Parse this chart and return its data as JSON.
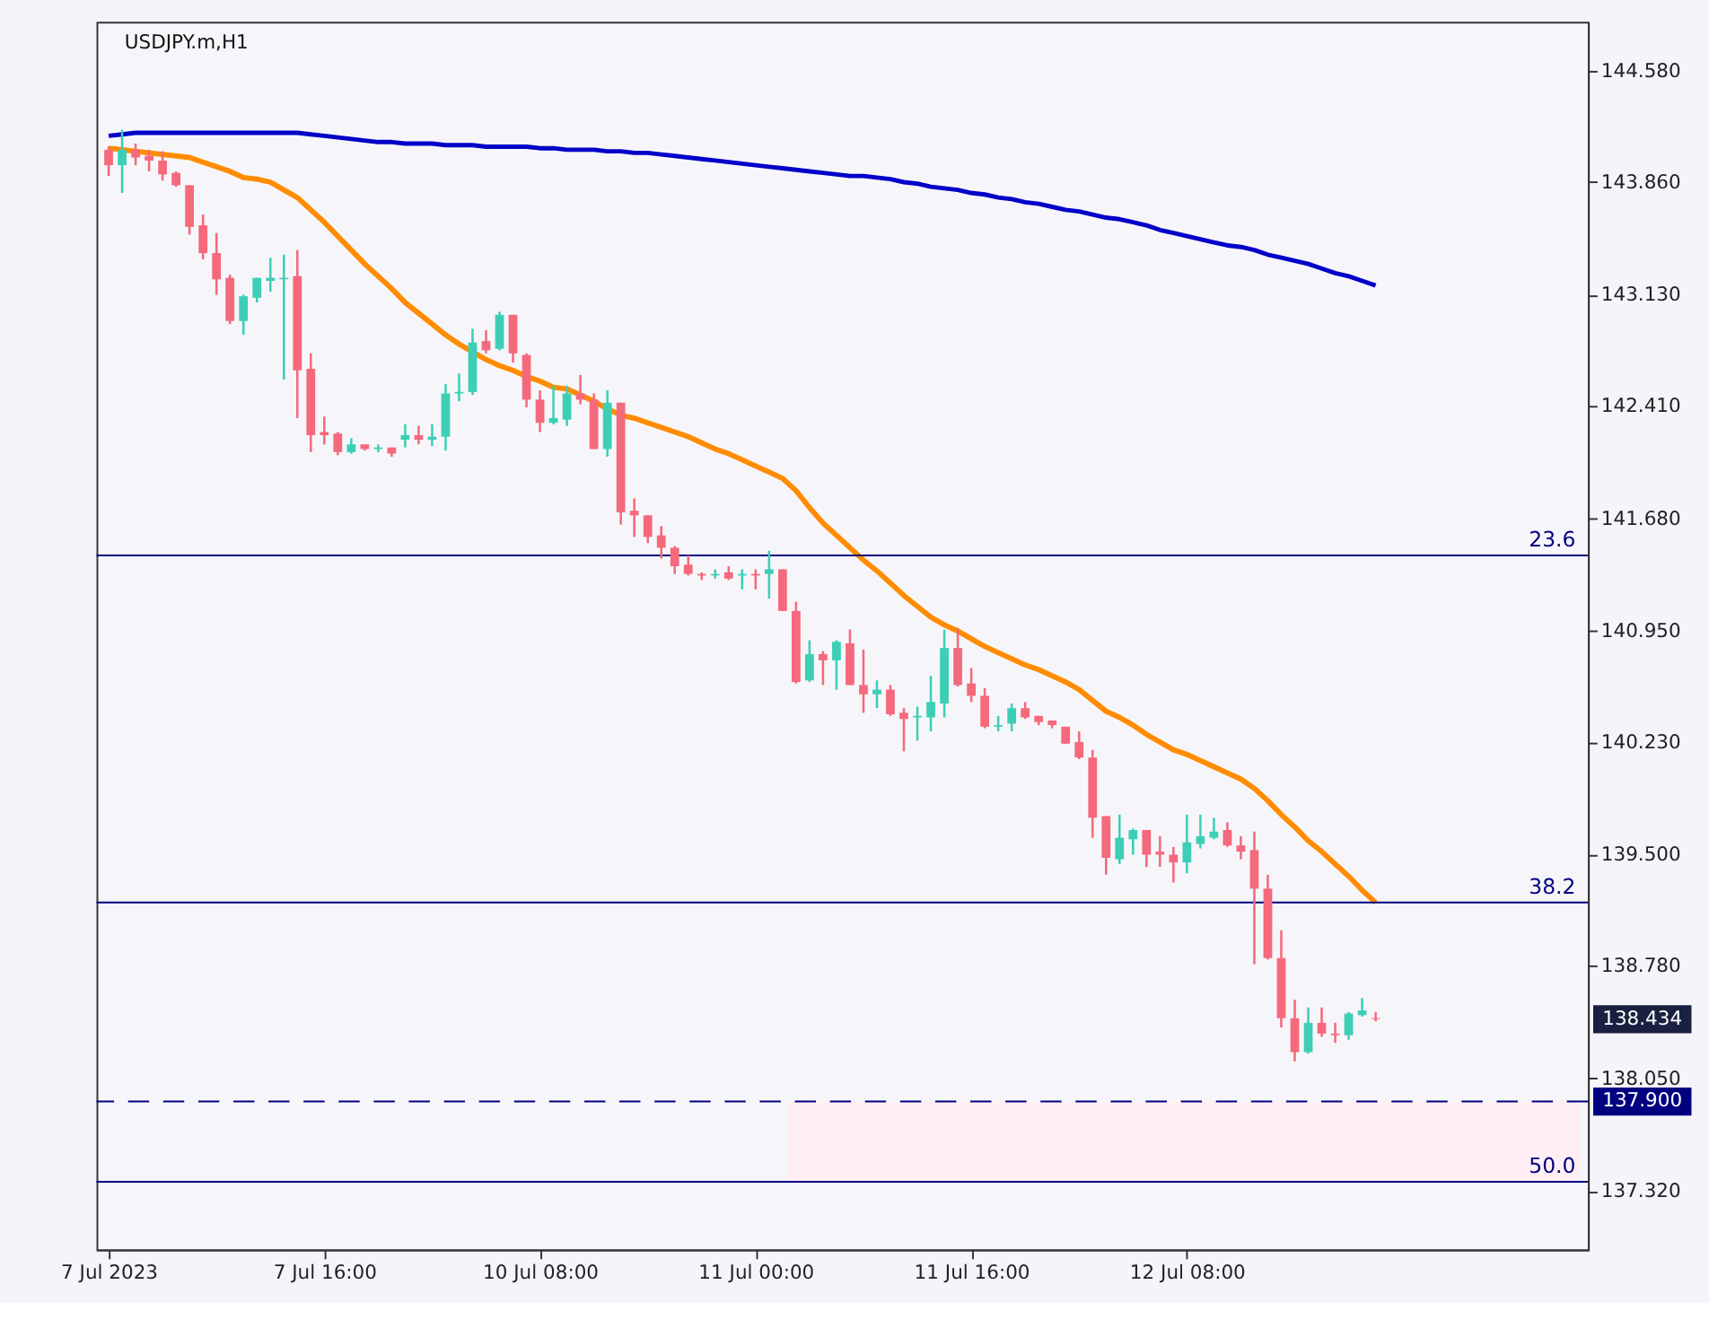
{
  "chart_data": {
    "type": "candlestick",
    "title": "USDJPY.m,H1",
    "categories": [
      "7 Jul 2023",
      null,
      null,
      null,
      null,
      null,
      null,
      null,
      null,
      null,
      null,
      null,
      null,
      null,
      null,
      null,
      "7 Jul 16:00",
      null,
      null,
      null,
      null,
      null,
      null,
      null,
      null,
      null,
      null,
      null,
      null,
      null,
      null,
      null,
      "10 Jul 08:00",
      null,
      null,
      null,
      null,
      null,
      null,
      null,
      null,
      null,
      null,
      null,
      null,
      null,
      null,
      null,
      "11 Jul 00:00",
      null,
      null,
      null,
      null,
      null,
      null,
      null,
      null,
      null,
      null,
      null,
      null,
      null,
      null,
      null,
      "11 Jul 16:00",
      null,
      null,
      null,
      null,
      null,
      null,
      null,
      null,
      null,
      null,
      null,
      null,
      null,
      null,
      null,
      "12 Jul 08:00",
      null,
      null,
      null,
      null,
      null,
      null,
      null,
      null,
      null,
      null,
      null,
      null,
      null,
      null
    ],
    "ohlc": [
      [
        144.07,
        144.09,
        143.9,
        143.97
      ],
      [
        143.97,
        144.2,
        143.79,
        144.07
      ],
      [
        144.07,
        144.11,
        143.97,
        144.02
      ],
      [
        144.03,
        144.07,
        143.93,
        144.0
      ],
      [
        144.0,
        144.06,
        143.87,
        143.91
      ],
      [
        143.92,
        143.93,
        143.83,
        143.84
      ],
      [
        143.84,
        143.84,
        143.52,
        143.57
      ],
      [
        143.58,
        143.65,
        143.36,
        143.4
      ],
      [
        143.4,
        143.53,
        143.13,
        143.23
      ],
      [
        143.24,
        143.26,
        142.94,
        142.96
      ],
      [
        142.96,
        143.13,
        142.87,
        143.12
      ],
      [
        143.11,
        143.24,
        143.08,
        143.24
      ],
      [
        143.22,
        143.37,
        143.15,
        143.24
      ],
      [
        143.23,
        143.39,
        142.58,
        143.24
      ],
      [
        143.25,
        143.42,
        142.33,
        142.64
      ],
      [
        142.65,
        142.75,
        142.11,
        142.22
      ],
      [
        142.24,
        142.34,
        142.16,
        142.22
      ],
      [
        142.23,
        142.24,
        142.09,
        142.11
      ],
      [
        142.11,
        142.2,
        142.1,
        142.16
      ],
      [
        142.16,
        142.16,
        142.12,
        142.13
      ],
      [
        142.13,
        142.16,
        142.11,
        142.14
      ],
      [
        142.14,
        142.14,
        142.08,
        142.1
      ],
      [
        142.19,
        142.29,
        142.14,
        142.22
      ],
      [
        142.22,
        142.28,
        142.16,
        142.19
      ],
      [
        142.19,
        142.29,
        142.15,
        142.21
      ],
      [
        142.21,
        142.55,
        142.12,
        142.49
      ],
      [
        142.49,
        142.62,
        142.44,
        142.5
      ],
      [
        142.5,
        142.91,
        142.48,
        142.82
      ],
      [
        142.83,
        142.9,
        142.75,
        142.77
      ],
      [
        142.78,
        143.02,
        142.77,
        143.0
      ],
      [
        143.0,
        143.0,
        142.69,
        142.75
      ],
      [
        142.74,
        142.75,
        142.4,
        142.45
      ],
      [
        142.45,
        142.51,
        142.24,
        142.3
      ],
      [
        142.3,
        142.54,
        142.29,
        142.33
      ],
      [
        142.32,
        142.54,
        142.28,
        142.49
      ],
      [
        142.49,
        142.61,
        142.42,
        142.45
      ],
      [
        142.45,
        142.49,
        142.13,
        142.13
      ],
      [
        142.13,
        142.51,
        142.08,
        142.43
      ],
      [
        142.43,
        142.43,
        141.64,
        141.72
      ],
      [
        141.73,
        141.81,
        141.56,
        141.7
      ],
      [
        141.7,
        141.7,
        141.52,
        141.56
      ],
      [
        141.57,
        141.63,
        141.42,
        141.49
      ],
      [
        141.49,
        141.5,
        141.32,
        141.37
      ],
      [
        141.38,
        141.44,
        141.31,
        141.32
      ],
      [
        141.32,
        141.33,
        141.28,
        141.31
      ],
      [
        141.31,
        141.35,
        141.29,
        141.32
      ],
      [
        141.33,
        141.37,
        141.28,
        141.29
      ],
      [
        141.31,
        141.35,
        141.22,
        141.32
      ],
      [
        141.32,
        141.35,
        141.22,
        141.31
      ],
      [
        141.32,
        141.47,
        141.16,
        141.35
      ],
      [
        141.35,
        141.35,
        141.08,
        141.08
      ],
      [
        141.08,
        141.14,
        140.61,
        140.62
      ],
      [
        140.63,
        140.89,
        140.62,
        140.8
      ],
      [
        140.8,
        140.82,
        140.6,
        140.76
      ],
      [
        140.76,
        140.89,
        140.57,
        140.88
      ],
      [
        140.87,
        140.96,
        140.6,
        140.6
      ],
      [
        140.6,
        140.83,
        140.42,
        140.54
      ],
      [
        140.54,
        140.63,
        140.45,
        140.57
      ],
      [
        140.57,
        140.6,
        140.4,
        140.41
      ],
      [
        140.42,
        140.45,
        140.17,
        140.38
      ],
      [
        140.39,
        140.46,
        140.24,
        140.4
      ],
      [
        140.39,
        140.66,
        140.3,
        140.49
      ],
      [
        140.48,
        140.96,
        140.39,
        140.84
      ],
      [
        140.84,
        140.97,
        140.59,
        140.6
      ],
      [
        140.61,
        140.71,
        140.49,
        140.53
      ],
      [
        140.53,
        140.58,
        140.32,
        140.33
      ],
      [
        140.33,
        140.4,
        140.3,
        140.34
      ],
      [
        140.35,
        140.48,
        140.3,
        140.45
      ],
      [
        140.45,
        140.49,
        140.38,
        140.39
      ],
      [
        140.4,
        140.4,
        140.34,
        140.36
      ],
      [
        140.37,
        140.37,
        140.32,
        140.34
      ],
      [
        140.33,
        140.33,
        140.22,
        140.22
      ],
      [
        140.23,
        140.3,
        140.12,
        140.13
      ],
      [
        140.13,
        140.18,
        139.61,
        139.74
      ],
      [
        139.75,
        139.75,
        139.37,
        139.48
      ],
      [
        139.47,
        139.76,
        139.44,
        139.61
      ],
      [
        139.6,
        139.67,
        139.5,
        139.66
      ],
      [
        139.66,
        139.66,
        139.42,
        139.5
      ],
      [
        139.52,
        139.62,
        139.42,
        139.5
      ],
      [
        139.5,
        139.55,
        139.32,
        139.45
      ],
      [
        139.45,
        139.76,
        139.38,
        139.58
      ],
      [
        139.57,
        139.76,
        139.54,
        139.62
      ],
      [
        139.61,
        139.74,
        139.6,
        139.65
      ],
      [
        139.66,
        139.71,
        139.55,
        139.56
      ],
      [
        139.56,
        139.62,
        139.47,
        139.52
      ],
      [
        139.53,
        139.65,
        138.79,
        139.28
      ],
      [
        139.28,
        139.37,
        138.82,
        138.83
      ],
      [
        138.83,
        139.01,
        138.38,
        138.44
      ],
      [
        138.44,
        138.56,
        138.16,
        138.22
      ],
      [
        138.22,
        138.51,
        138.21,
        138.41
      ],
      [
        138.41,
        138.51,
        138.32,
        138.34
      ],
      [
        138.34,
        138.41,
        138.28,
        138.33
      ],
      [
        138.33,
        138.48,
        138.3,
        138.47
      ],
      [
        138.46,
        138.57,
        138.45,
        138.49
      ],
      [
        138.44,
        138.48,
        138.42,
        138.434
      ]
    ],
    "colors": [
      "#f5697c",
      "#3ccfb6",
      "#f5697c",
      "#f5697c",
      "#f5697c",
      "#f5697c",
      "#f5697c",
      "#f5697c",
      "#f5697c",
      "#f5697c",
      "#3ccfb6",
      "#3ccfb6",
      "#3ccfb6",
      "#3ccfb6",
      "#f5697c",
      "#f5697c",
      "#f5697c",
      "#f5697c",
      "#3ccfb6",
      "#f5697c",
      "#3ccfb6",
      "#f5697c",
      "#3ccfb6",
      "#f5697c",
      "#3ccfb6",
      "#3ccfb6",
      "#3ccfb6",
      "#3ccfb6",
      "#f5697c",
      "#3ccfb6",
      "#f5697c",
      "#f5697c",
      "#f5697c",
      "#3ccfb6",
      "#3ccfb6",
      "#f5697c",
      "#f5697c",
      "#3ccfb6",
      "#f5697c",
      "#f5697c",
      "#f5697c",
      "#f5697c",
      "#f5697c",
      "#f5697c",
      "#f5697c",
      "#3ccfb6",
      "#f5697c",
      "#3ccfb6",
      "#f5697c",
      "#3ccfb6",
      "#f5697c",
      "#f5697c",
      "#3ccfb6",
      "#f5697c",
      "#3ccfb6",
      "#f5697c",
      "#f5697c",
      "#3ccfb6",
      "#f5697c",
      "#f5697c",
      "#3ccfb6",
      "#3ccfb6",
      "#3ccfb6",
      "#f5697c",
      "#f5697c",
      "#f5697c",
      "#3ccfb6",
      "#3ccfb6",
      "#f5697c",
      "#f5697c",
      "#f5697c",
      "#f5697c",
      "#f5697c",
      "#f5697c",
      "#f5697c",
      "#3ccfb6",
      "#3ccfb6",
      "#f5697c",
      "#f5697c",
      "#f5697c",
      "#3ccfb6",
      "#3ccfb6",
      "#3ccfb6",
      "#f5697c",
      "#f5697c",
      "#f5697c",
      "#f5697c",
      "#f5697c",
      "#f5697c",
      "#3ccfb6",
      "#f5697c",
      "#f5697c",
      "#3ccfb6",
      "#3ccfb6",
      "#f5697c"
    ],
    "series": [
      {
        "type": "line",
        "color": "#ff8c00",
        "values": [
          144.08,
          144.07,
          144.06,
          144.05,
          144.04,
          144.03,
          144.02,
          143.99,
          143.96,
          143.93,
          143.89,
          143.88,
          143.86,
          143.81,
          143.76,
          143.68,
          143.6,
          143.51,
          143.42,
          143.33,
          143.25,
          143.17,
          143.08,
          143.01,
          142.94,
          142.87,
          142.81,
          142.76,
          142.71,
          142.67,
          142.64,
          142.6,
          142.57,
          142.53,
          142.52,
          142.48,
          142.44,
          142.39,
          142.35,
          142.33,
          142.3,
          142.27,
          142.24,
          142.21,
          142.17,
          142.13,
          142.1,
          142.06,
          142.02,
          141.98,
          141.94,
          141.86,
          141.75,
          141.65,
          141.57,
          141.49,
          141.41,
          141.34,
          141.26,
          141.18,
          141.11,
          141.04,
          140.99,
          140.95,
          140.9,
          140.85,
          140.81,
          140.77,
          140.73,
          140.7,
          140.66,
          140.62,
          140.57,
          140.5,
          140.43,
          140.39,
          140.34,
          140.28,
          140.23,
          140.18,
          140.15,
          140.11,
          140.07,
          140.03,
          139.99,
          139.93,
          139.85,
          139.76,
          139.68,
          139.59,
          139.52,
          139.44,
          139.36,
          139.27,
          139.19
        ]
      },
      {
        "type": "line",
        "color": "#0000c8",
        "values": [
          144.16,
          144.17,
          144.18,
          144.18,
          144.18,
          144.18,
          144.18,
          144.18,
          144.18,
          144.18,
          144.18,
          144.18,
          144.18,
          144.18,
          144.18,
          144.17,
          144.16,
          144.15,
          144.14,
          144.13,
          144.12,
          144.12,
          144.11,
          144.11,
          144.11,
          144.1,
          144.1,
          144.1,
          144.09,
          144.09,
          144.09,
          144.09,
          144.08,
          144.08,
          144.07,
          144.07,
          144.07,
          144.06,
          144.06,
          144.05,
          144.05,
          144.04,
          144.03,
          144.02,
          144.01,
          144.0,
          143.99,
          143.98,
          143.97,
          143.96,
          143.95,
          143.94,
          143.93,
          143.92,
          143.91,
          143.9,
          143.9,
          143.89,
          143.88,
          143.86,
          143.85,
          143.83,
          143.82,
          143.81,
          143.79,
          143.78,
          143.76,
          143.75,
          143.73,
          143.72,
          143.7,
          143.68,
          143.67,
          143.65,
          143.63,
          143.62,
          143.6,
          143.58,
          143.55,
          143.53,
          143.51,
          143.49,
          143.47,
          143.45,
          143.44,
          143.42,
          143.39,
          143.37,
          143.35,
          143.33,
          143.3,
          143.27,
          143.25,
          143.22,
          143.19
        ]
      }
    ],
    "ylim": [
      136.94,
      144.9
    ],
    "yticks": [
      {
        "value": 144.58,
        "label": "144.580"
      },
      {
        "value": 143.86,
        "label": "143.860"
      },
      {
        "value": 143.13,
        "label": "143.130"
      },
      {
        "value": 142.41,
        "label": "142.410"
      },
      {
        "value": 141.68,
        "label": "141.680"
      },
      {
        "value": 140.95,
        "label": "140.950"
      },
      {
        "value": 140.23,
        "label": "140.230"
      },
      {
        "value": 139.5,
        "label": "139.500"
      },
      {
        "value": 138.78,
        "label": "138.780"
      },
      {
        "value": 138.05,
        "label": "138.050"
      },
      {
        "value": 137.32,
        "label": "137.320"
      }
    ],
    "ref_lines": [
      {
        "axis": "y",
        "value": 141.44,
        "color": "#000080"
      },
      {
        "axis": "y",
        "value": 139.19,
        "color": "#000080"
      },
      {
        "axis": "y",
        "value": 137.38,
        "color": "#000080"
      },
      {
        "axis": "y",
        "value": 137.9,
        "label": "137.900",
        "color": "#000080",
        "line_style": "dashed"
      }
    ],
    "bands": [
      {
        "axis": "y",
        "from": 137.38,
        "to": 137.9,
        "color": "#ffeef3"
      }
    ],
    "annotations": [
      {
        "text": "23.6",
        "y": 141.44
      },
      {
        "text": "38.2",
        "y": 139.19
      },
      {
        "text": "50.0",
        "y": 137.38
      },
      "138.434"
    ],
    "grid": false
  }
}
